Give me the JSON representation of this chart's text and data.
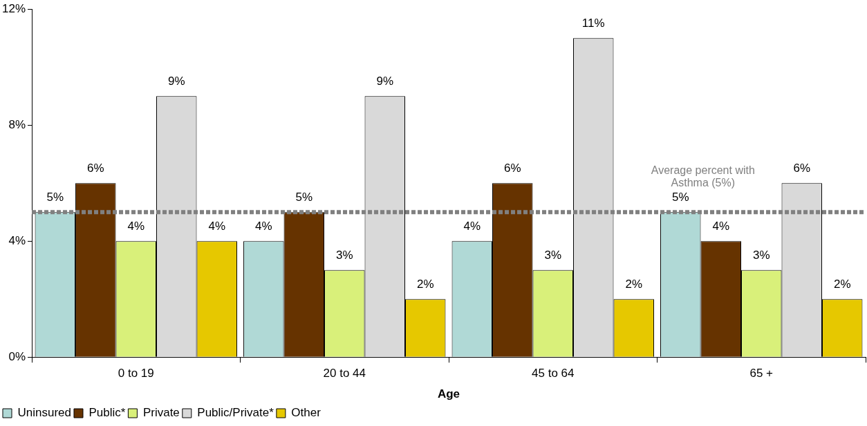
{
  "chart_data": {
    "type": "bar",
    "xlabel": "Age",
    "categories": [
      "0 to 19",
      "20 to 44",
      "45 to 64",
      "65 +"
    ],
    "series": [
      {
        "name": "Uninsured",
        "color": "#b0d9d6",
        "values": [
          5,
          4,
          4,
          5
        ],
        "value_labels": [
          "5%",
          "4%",
          "4%",
          "5%"
        ]
      },
      {
        "name": "Public*",
        "color": "#663300",
        "values": [
          6,
          5,
          6,
          4
        ],
        "value_labels": [
          "6%",
          "5%",
          "6%",
          "4%"
        ]
      },
      {
        "name": "Private",
        "color": "#d9f07a",
        "values": [
          4,
          3,
          3,
          3
        ],
        "value_labels": [
          "4%",
          "3%",
          "3%",
          "3%"
        ]
      },
      {
        "name": "Public/Private*",
        "color": "#d9d9d9",
        "values": [
          9,
          9,
          11,
          6
        ],
        "value_labels": [
          "9%",
          "9%",
          "11%",
          "6%"
        ]
      },
      {
        "name": "Other",
        "color": "#e6c800",
        "values": [
          4,
          2,
          2,
          2
        ],
        "value_labels": [
          "4%",
          "2%",
          "2%",
          "2%"
        ]
      }
    ],
    "ylim": [
      0,
      12
    ],
    "yticks": [
      {
        "value": 0,
        "label": "0%"
      },
      {
        "value": 4,
        "label": "4%"
      },
      {
        "value": 8,
        "label": "8%"
      },
      {
        "value": 12,
        "label": "12%"
      }
    ],
    "ref_lines": [
      {
        "axis": "y",
        "value": 5,
        "label": "Average percent with Asthma (5%)",
        "color": "#808080",
        "line_style": "dotted"
      }
    ],
    "grid": false,
    "legend": "bottom left"
  }
}
